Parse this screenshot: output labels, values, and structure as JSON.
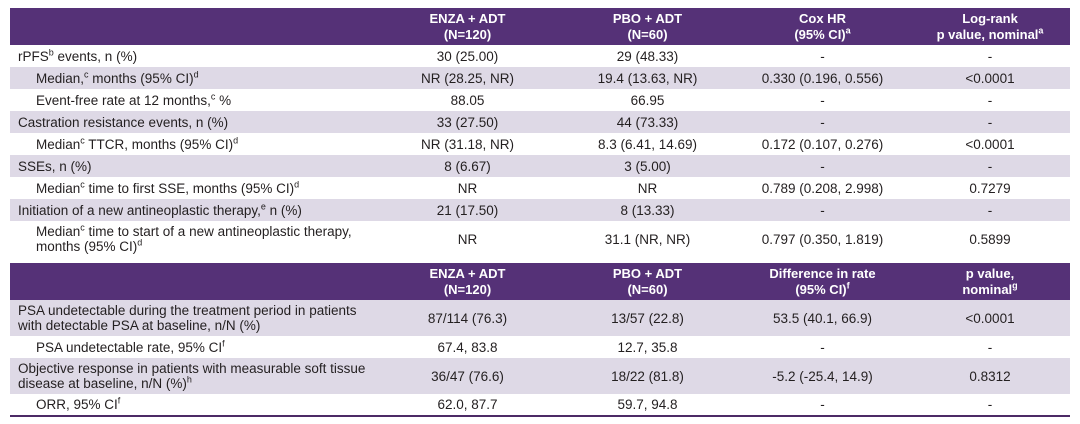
{
  "colors": {
    "header_bg": "#553177",
    "row_shade": "#ded9e6",
    "border_line": "#4c2a66",
    "text": "#231f20"
  },
  "table1": {
    "headers": [
      {
        "line1": [
          "ENZA + ADT"
        ],
        "line2": [
          "(N=120)"
        ]
      },
      {
        "line1": [
          "PBO + ADT"
        ],
        "line2": [
          "(N=60)"
        ]
      },
      {
        "line1": [
          "Cox HR"
        ],
        "line2": [
          "(95% CI)",
          "^a"
        ]
      },
      {
        "line1": [
          "Log-rank"
        ],
        "line2": [
          "p value, nominal",
          "^a"
        ]
      }
    ],
    "rows": [
      {
        "label": [
          "rPFS",
          "^b",
          " events, n (%)"
        ],
        "values": [
          "30 (25.00)",
          "29 (48.33)",
          "-",
          "-"
        ]
      },
      {
        "label": [
          "Median,",
          "^c",
          " months (95% CI)",
          "^d"
        ],
        "values": [
          "NR (28.25, NR)",
          "19.4 (13.63, NR)",
          "0.330 (0.196, 0.556)",
          "<0.0001"
        ]
      },
      {
        "label": [
          "Event-free rate at 12 months,",
          "^c",
          " %"
        ],
        "values": [
          "88.05",
          "66.95",
          "-",
          "-"
        ]
      },
      {
        "label": [
          "Castration resistance events, n (%)"
        ],
        "values": [
          "33 (27.50)",
          "44 (73.33)",
          "-",
          "-"
        ]
      },
      {
        "label": [
          "Median",
          "^c",
          " TTCR, months (95% CI)",
          "^d"
        ],
        "values": [
          "NR (31.18, NR)",
          "8.3 (6.41, 14.69)",
          "0.172 (0.107, 0.276)",
          "<0.0001"
        ]
      },
      {
        "label": [
          "SSEs, n (%)"
        ],
        "values": [
          "8 (6.67)",
          "3 (5.00)",
          "-",
          "-"
        ]
      },
      {
        "label": [
          "Median",
          "^c",
          " time to first SSE, months (95% CI)",
          "^d"
        ],
        "values": [
          "NR",
          "NR",
          "0.789 (0.208, 2.998)",
          "0.7279"
        ]
      },
      {
        "label": [
          "Initiation of a new antineoplastic therapy,",
          "^e",
          " n (%)"
        ],
        "values": [
          "21 (17.50)",
          "8 (13.33)",
          "-",
          "-"
        ]
      },
      {
        "label": [
          "Median",
          "^c",
          " time to start of a new antineoplastic therapy, months (95% CI)",
          "^d"
        ],
        "values": [
          "NR",
          "31.1 (NR, NR)",
          "0.797 (0.350, 1.819)",
          "0.5899"
        ]
      }
    ]
  },
  "table2": {
    "headers": [
      {
        "line1": [
          "ENZA + ADT"
        ],
        "line2": [
          "(N=120)"
        ]
      },
      {
        "line1": [
          "PBO + ADT"
        ],
        "line2": [
          "(N=60)"
        ]
      },
      {
        "line1": [
          "Difference in rate"
        ],
        "line2": [
          "(95% CI)",
          "^f"
        ]
      },
      {
        "line1": [
          "p value,"
        ],
        "line2": [
          "nominal",
          "^g"
        ]
      }
    ],
    "rows": [
      {
        "label": [
          "PSA undetectable during the treatment period in patients with detectable PSA at baseline, n/N (%)"
        ],
        "values": [
          "87/114 (76.3)",
          "13/57 (22.8)",
          "53.5 (40.1, 66.9)",
          "<0.0001"
        ]
      },
      {
        "label": [
          "PSA undetectable rate, 95% CI",
          "^f"
        ],
        "values": [
          "67.4, 83.8",
          "12.7, 35.8",
          "-",
          "-"
        ]
      },
      {
        "label": [
          "Objective response in patients with measurable soft tissue disease at baseline, n/N (%)",
          "^h"
        ],
        "values": [
          "36/47 (76.6)",
          "18/22 (81.8)",
          "-5.2 (-25.4, 14.9)",
          "0.8312"
        ]
      },
      {
        "label": [
          "ORR, 95% CI",
          "^f"
        ],
        "values": [
          "62.0, 87.7",
          "59.7, 94.8",
          "-",
          "-"
        ]
      }
    ]
  }
}
